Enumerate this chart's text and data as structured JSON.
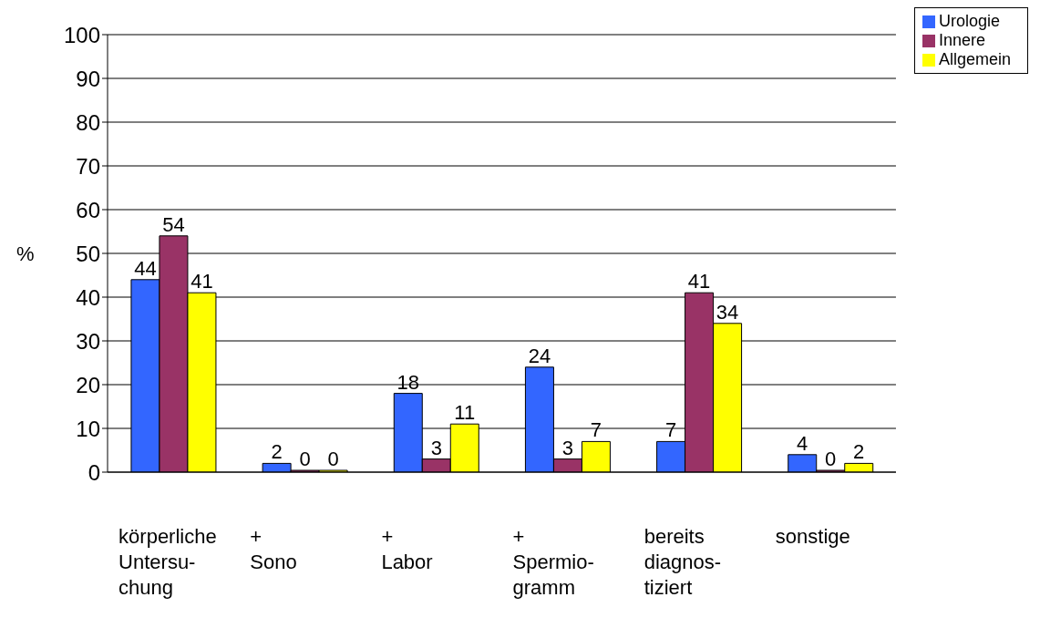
{
  "chart_data": {
    "type": "bar",
    "ylabel": "%",
    "categories": [
      "körperliche\nUntersu-\nchung",
      "+\nSono",
      "+\nLabor",
      "+\nSpermio-\ngramm",
      "bereits\ndiagnos-\ntiziert",
      "sonstige"
    ],
    "series": [
      {
        "name": "Urologie",
        "color": "#3366ff",
        "values": [
          44,
          2,
          18,
          24,
          7,
          4
        ]
      },
      {
        "name": "Innere",
        "color": "#993366",
        "values": [
          54,
          0,
          3,
          3,
          41,
          0
        ]
      },
      {
        "name": "Allgemein",
        "color": "#ffff00",
        "values": [
          41,
          0,
          11,
          7,
          34,
          2
        ]
      }
    ],
    "ylim": [
      0,
      100
    ],
    "yticks": [
      0,
      10,
      20,
      30,
      40,
      50,
      60,
      70,
      80,
      90,
      100
    ],
    "grid": "y",
    "legend": "top right",
    "data_labels": true
  }
}
